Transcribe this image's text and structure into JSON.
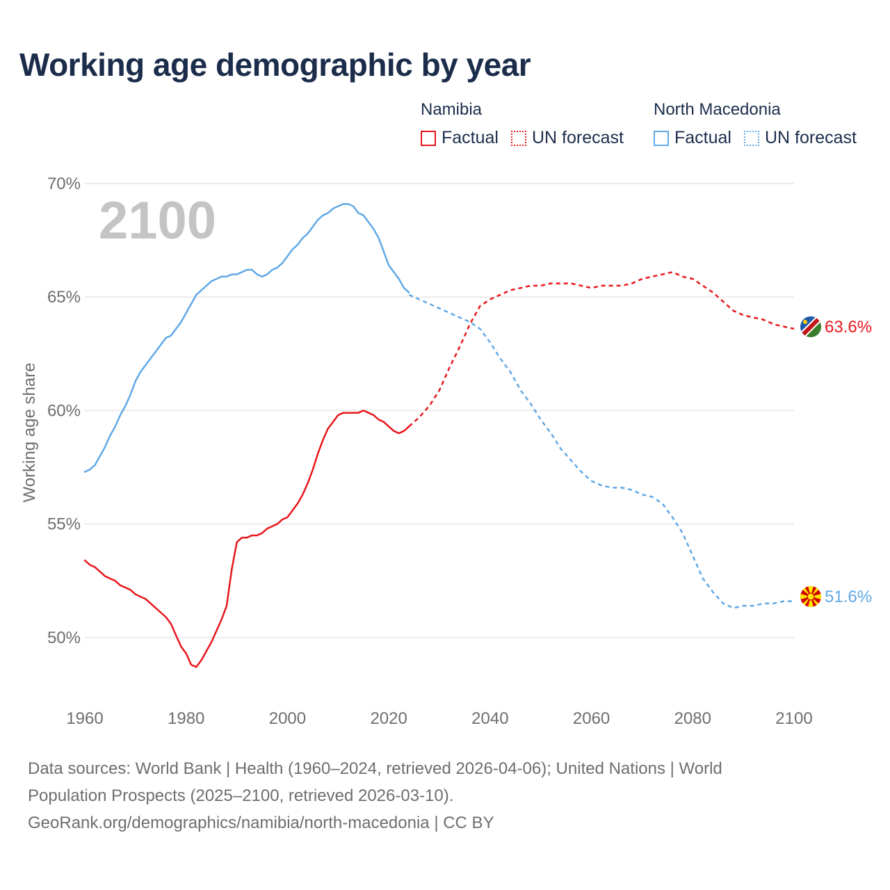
{
  "colors": {
    "namibia": "#e8161b",
    "north_macedonia": "#60a8e6",
    "title": "#1b2d4b",
    "axis_text": "#6e6e6e",
    "grid": "#e6e6e6",
    "year_watermark": "#c4c4c4"
  },
  "legend": {
    "groups": [
      {
        "country": "Namibia",
        "factual_label": "Factual",
        "forecast_label": "UN forecast"
      },
      {
        "country": "North Macedonia",
        "factual_label": "Factual",
        "forecast_label": "UN forecast"
      }
    ]
  },
  "footer": {
    "line1": "Data sources: World Bank | Health (1960–2024, retrieved 2026-04-06); United Nations | World",
    "line2": "Population Prospects (2025–2100, retrieved 2026-03-10).",
    "line3": "GeoRank.org/demographics/namibia/north-macedonia | CC BY"
  },
  "chart_data": {
    "type": "line",
    "title": "Working age demographic by year",
    "year_label": "2100",
    "ylabel": "Working age share",
    "xlabel": "",
    "xlim": [
      1960,
      2100
    ],
    "ylim": [
      47.3,
      70
    ],
    "x_ticks": [
      1960,
      1980,
      2000,
      2020,
      2040,
      2060,
      2080,
      2100
    ],
    "y_ticks": [
      {
        "value": 50,
        "label": "50%"
      },
      {
        "value": 55,
        "label": "55%"
      },
      {
        "value": 60,
        "label": "60%"
      },
      {
        "value": 65,
        "label": "65%"
      },
      {
        "value": 70,
        "label": "70%"
      }
    ],
    "grid": true,
    "series": [
      {
        "name": "Namibia",
        "color_key": "namibia",
        "end_label": "63.6%",
        "factual": {
          "x": [
            1960,
            1961,
            1962,
            1963,
            1964,
            1965,
            1966,
            1967,
            1968,
            1969,
            1970,
            1971,
            1972,
            1973,
            1974,
            1975,
            1976,
            1977,
            1978,
            1979,
            1980,
            1981,
            1982,
            1983,
            1984,
            1985,
            1986,
            1987,
            1988,
            1989,
            1990,
            1991,
            1992,
            1993,
            1994,
            1995,
            1996,
            1997,
            1998,
            1999,
            2000,
            2001,
            2002,
            2003,
            2004,
            2005,
            2006,
            2007,
            2008,
            2009,
            2010,
            2011,
            2012,
            2013,
            2014,
            2015,
            2016,
            2017,
            2018,
            2019,
            2020,
            2021,
            2022,
            2023,
            2024
          ],
          "y": [
            53.4,
            53.2,
            53.1,
            52.9,
            52.7,
            52.6,
            52.5,
            52.3,
            52.2,
            52.1,
            51.9,
            51.8,
            51.7,
            51.5,
            51.3,
            51.1,
            50.9,
            50.6,
            50.1,
            49.6,
            49.3,
            48.8,
            48.7,
            49.0,
            49.4,
            49.8,
            50.3,
            50.8,
            51.4,
            53.0,
            54.2,
            54.4,
            54.4,
            54.5,
            54.5,
            54.6,
            54.8,
            54.9,
            55.0,
            55.2,
            55.3,
            55.6,
            55.9,
            56.3,
            56.8,
            57.4,
            58.1,
            58.7,
            59.2,
            59.5,
            59.8,
            59.9,
            59.9,
            59.9,
            59.9,
            60.0,
            59.9,
            59.8,
            59.6,
            59.5,
            59.3,
            59.1,
            59.0,
            59.1,
            59.3
          ],
          "style": "solid"
        },
        "forecast": {
          "x": [
            2024,
            2026,
            2028,
            2030,
            2032,
            2034,
            2036,
            2038,
            2040,
            2042,
            2044,
            2046,
            2048,
            2050,
            2052,
            2054,
            2056,
            2058,
            2060,
            2062,
            2064,
            2066,
            2068,
            2070,
            2072,
            2074,
            2076,
            2078,
            2080,
            2082,
            2084,
            2086,
            2088,
            2090,
            2092,
            2094,
            2096,
            2098,
            2100
          ],
          "y": [
            59.3,
            59.7,
            60.2,
            60.9,
            61.9,
            62.8,
            63.8,
            64.6,
            64.9,
            65.1,
            65.3,
            65.4,
            65.5,
            65.5,
            65.6,
            65.6,
            65.6,
            65.5,
            65.4,
            65.5,
            65.5,
            65.5,
            65.6,
            65.8,
            65.9,
            66.0,
            66.1,
            65.9,
            65.8,
            65.5,
            65.2,
            64.8,
            64.4,
            64.2,
            64.1,
            64.0,
            63.8,
            63.7,
            63.6
          ],
          "style": "dashed"
        }
      },
      {
        "name": "North Macedonia",
        "color_key": "north_macedonia",
        "end_label": "51.6%",
        "factual": {
          "x": [
            1960,
            1961,
            1962,
            1963,
            1964,
            1965,
            1966,
            1967,
            1968,
            1969,
            1970,
            1971,
            1972,
            1973,
            1974,
            1975,
            1976,
            1977,
            1978,
            1979,
            1980,
            1981,
            1982,
            1983,
            1984,
            1985,
            1986,
            1987,
            1988,
            1989,
            1990,
            1991,
            1992,
            1993,
            1994,
            1995,
            1996,
            1997,
            1998,
            1999,
            2000,
            2001,
            2002,
            2003,
            2004,
            2005,
            2006,
            2007,
            2008,
            2009,
            2010,
            2011,
            2012,
            2013,
            2014,
            2015,
            2016,
            2017,
            2018,
            2019,
            2020,
            2021,
            2022,
            2023,
            2024
          ],
          "y": [
            57.3,
            57.4,
            57.6,
            58.0,
            58.4,
            58.9,
            59.3,
            59.8,
            60.2,
            60.7,
            61.3,
            61.7,
            62.0,
            62.3,
            62.6,
            62.9,
            63.2,
            63.3,
            63.6,
            63.9,
            64.3,
            64.7,
            65.1,
            65.3,
            65.5,
            65.7,
            65.8,
            65.9,
            65.9,
            66.0,
            66.0,
            66.1,
            66.2,
            66.2,
            66.0,
            65.9,
            66.0,
            66.2,
            66.3,
            66.5,
            66.8,
            67.1,
            67.3,
            67.6,
            67.8,
            68.1,
            68.4,
            68.6,
            68.7,
            68.9,
            69.0,
            69.1,
            69.1,
            69.0,
            68.7,
            68.6,
            68.3,
            68.0,
            67.6,
            67.0,
            66.4,
            66.1,
            65.8,
            65.4,
            65.2
          ],
          "style": "solid"
        },
        "forecast": {
          "x": [
            2024,
            2026,
            2028,
            2030,
            2032,
            2034,
            2036,
            2038,
            2040,
            2042,
            2044,
            2046,
            2048,
            2050,
            2052,
            2054,
            2056,
            2058,
            2060,
            2062,
            2064,
            2066,
            2068,
            2070,
            2072,
            2074,
            2076,
            2078,
            2080,
            2082,
            2084,
            2086,
            2088,
            2090,
            2092,
            2094,
            2096,
            2098,
            2100
          ],
          "y": [
            65.1,
            64.9,
            64.7,
            64.5,
            64.3,
            64.1,
            63.9,
            63.6,
            63.0,
            62.3,
            61.7,
            60.9,
            60.3,
            59.6,
            59.0,
            58.3,
            57.8,
            57.3,
            56.9,
            56.7,
            56.6,
            56.6,
            56.5,
            56.3,
            56.2,
            55.9,
            55.3,
            54.6,
            53.6,
            52.6,
            52.0,
            51.5,
            51.3,
            51.4,
            51.4,
            51.5,
            51.5,
            51.6,
            51.6
          ],
          "style": "dashed"
        }
      }
    ]
  }
}
